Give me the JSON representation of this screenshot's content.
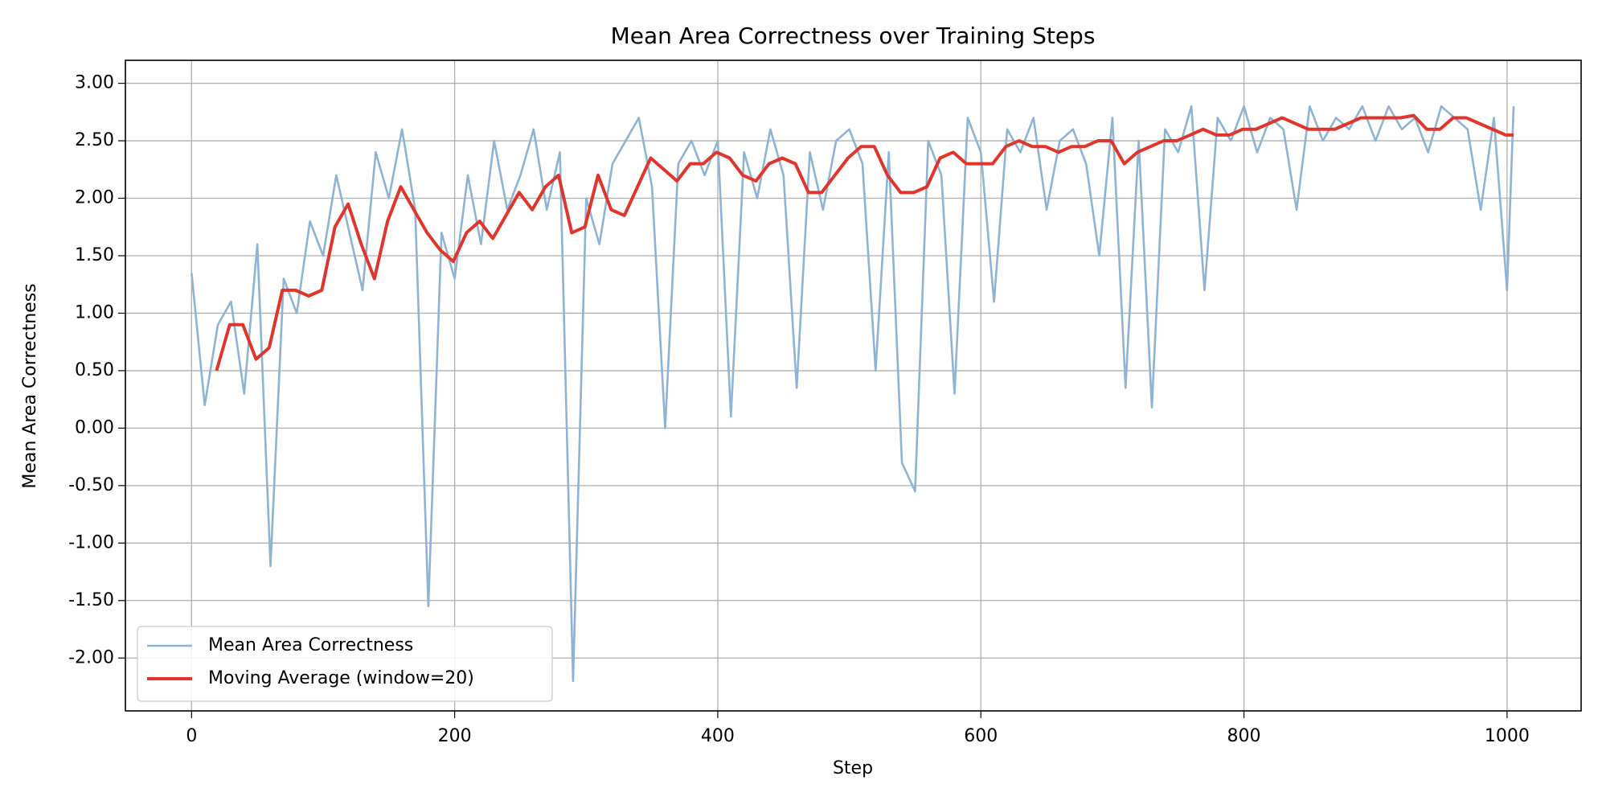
{
  "chart_data": {
    "type": "line",
    "title": "Mean Area Correctness over Training Steps",
    "x_label": "Step",
    "y_label": "Mean Area Correctness",
    "xlim": [
      -50.3,
      1056.3
    ],
    "ylim": [
      -2.46,
      3.2
    ],
    "xticks": [
      0,
      200,
      400,
      600,
      800,
      1000
    ],
    "yticks": [
      {
        "value": -2,
        "label": "-2.00"
      },
      {
        "value": -1.5,
        "label": "-1.50"
      },
      {
        "value": -1,
        "label": "-1.00"
      },
      {
        "value": -0.5,
        "label": "-0.50"
      },
      {
        "value": 0,
        "label": "0.00"
      },
      {
        "value": 0.5,
        "label": "0.50"
      },
      {
        "value": 1,
        "label": "1.00"
      },
      {
        "value": 1.5,
        "label": "1.50"
      },
      {
        "value": 2,
        "label": "2.00"
      },
      {
        "value": 2.5,
        "label": "2.50"
      },
      {
        "value": 3,
        "label": "3.00"
      }
    ],
    "grid": true,
    "legend": "lower left",
    "series": [
      {
        "name": "Mean Area Correctness",
        "color": "#8fb3d5",
        "width": 2.6,
        "x": [
          0,
          10,
          20,
          30,
          40,
          50,
          60,
          70,
          80,
          90,
          100,
          110,
          120,
          130,
          140,
          150,
          160,
          170,
          180,
          190,
          200,
          210,
          220,
          230,
          240,
          250,
          260,
          270,
          280,
          290,
          300,
          310,
          320,
          330,
          340,
          350,
          360,
          370,
          380,
          390,
          400,
          410,
          420,
          430,
          440,
          450,
          460,
          470,
          480,
          490,
          500,
          510,
          520,
          530,
          540,
          550,
          560,
          570,
          580,
          590,
          600,
          610,
          620,
          630,
          640,
          650,
          660,
          670,
          680,
          690,
          700,
          710,
          720,
          730,
          740,
          750,
          760,
          770,
          780,
          790,
          800,
          810,
          820,
          830,
          840,
          850,
          860,
          870,
          880,
          890,
          900,
          910,
          920,
          930,
          940,
          950,
          960,
          970,
          980,
          990,
          1000,
          1005
        ],
        "values": [
          1.35,
          0.2,
          0.9,
          1.1,
          0.3,
          1.6,
          -1.2,
          1.3,
          1.0,
          1.8,
          1.5,
          2.2,
          1.7,
          1.2,
          2.4,
          2.0,
          2.6,
          1.9,
          -1.55,
          1.7,
          1.3,
          2.2,
          1.6,
          2.5,
          1.9,
          2.2,
          2.6,
          1.9,
          2.4,
          -2.2,
          2.0,
          1.6,
          2.3,
          2.5,
          2.7,
          2.1,
          0.0,
          2.3,
          2.5,
          2.2,
          2.5,
          0.1,
          2.4,
          2.0,
          2.6,
          2.2,
          0.35,
          2.4,
          1.9,
          2.5,
          2.6,
          2.3,
          0.5,
          2.4,
          -0.3,
          -0.55,
          2.5,
          2.2,
          0.3,
          2.7,
          2.4,
          1.1,
          2.6,
          2.4,
          2.7,
          1.9,
          2.5,
          2.6,
          2.3,
          1.5,
          2.7,
          0.35,
          2.5,
          0.18,
          2.6,
          2.4,
          2.8,
          1.2,
          2.7,
          2.5,
          2.8,
          2.4,
          2.7,
          2.6,
          1.9,
          2.8,
          2.5,
          2.7,
          2.6,
          2.8,
          2.5,
          2.8,
          2.6,
          2.7,
          2.4,
          2.8,
          2.7,
          2.6,
          1.9,
          2.7,
          1.2,
          2.8
        ]
      },
      {
        "name": "Moving Average (window=20)",
        "color": "#e0352b",
        "width": 4,
        "x": [
          19,
          29,
          39,
          49,
          59,
          69,
          79,
          89,
          99,
          109,
          119,
          129,
          139,
          149,
          159,
          169,
          179,
          189,
          199,
          209,
          219,
          229,
          239,
          249,
          259,
          269,
          279,
          289,
          299,
          309,
          319,
          329,
          339,
          349,
          359,
          369,
          379,
          389,
          399,
          409,
          419,
          429,
          439,
          449,
          459,
          469,
          479,
          489,
          499,
          509,
          519,
          529,
          539,
          549,
          559,
          569,
          579,
          589,
          599,
          609,
          619,
          629,
          639,
          649,
          659,
          669,
          679,
          689,
          699,
          709,
          719,
          729,
          739,
          749,
          759,
          769,
          779,
          789,
          799,
          809,
          819,
          829,
          839,
          849,
          859,
          869,
          879,
          889,
          899,
          909,
          919,
          929,
          939,
          949,
          959,
          969,
          979,
          989,
          999,
          1005
        ],
        "values": [
          0.5,
          0.9,
          0.9,
          0.6,
          0.7,
          1.2,
          1.2,
          1.15,
          1.2,
          1.75,
          1.95,
          1.6,
          1.3,
          1.8,
          2.1,
          1.9,
          1.7,
          1.55,
          1.45,
          1.7,
          1.8,
          1.65,
          1.85,
          2.05,
          1.9,
          2.1,
          2.2,
          1.7,
          1.75,
          2.2,
          1.9,
          1.85,
          2.1,
          2.35,
          2.25,
          2.15,
          2.3,
          2.3,
          2.4,
          2.35,
          2.2,
          2.15,
          2.3,
          2.35,
          2.3,
          2.05,
          2.05,
          2.2,
          2.35,
          2.45,
          2.45,
          2.2,
          2.05,
          2.05,
          2.1,
          2.35,
          2.4,
          2.3,
          2.3,
          2.3,
          2.45,
          2.5,
          2.45,
          2.45,
          2.4,
          2.45,
          2.45,
          2.5,
          2.5,
          2.3,
          2.4,
          2.45,
          2.5,
          2.5,
          2.55,
          2.6,
          2.55,
          2.55,
          2.6,
          2.6,
          2.65,
          2.7,
          2.65,
          2.6,
          2.6,
          2.6,
          2.65,
          2.7,
          2.7,
          2.7,
          2.7,
          2.72,
          2.6,
          2.6,
          2.7,
          2.7,
          2.65,
          2.6,
          2.55,
          2.55
        ]
      }
    ]
  }
}
